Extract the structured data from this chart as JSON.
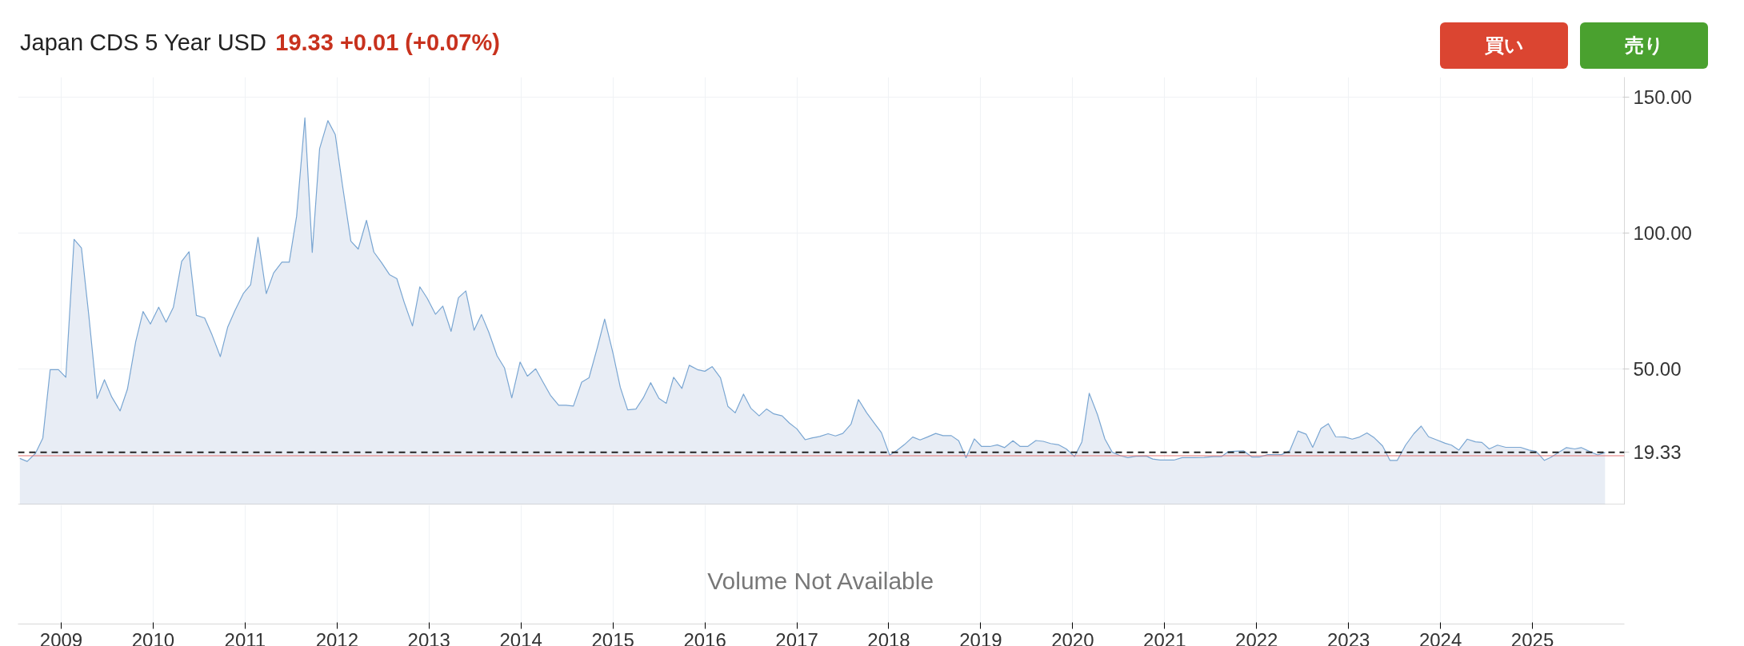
{
  "chart_data": {
    "type": "area",
    "title": "Japan CDS 5 Year USD",
    "subtitle": "19.33 +0.01 (+0.07%)",
    "annotations": [
      "Volume Not Available",
      "買い",
      "売り"
    ],
    "x": [
      2008.55,
      2008.63,
      2008.72,
      2008.8,
      2008.88,
      2008.97,
      2009.05,
      2009.14,
      2009.22,
      2009.3,
      2009.39,
      2009.47,
      2009.55,
      2009.64,
      2009.72,
      2009.81,
      2009.89,
      2009.97,
      2010.06,
      2010.14,
      2010.22,
      2010.31,
      2010.39,
      2010.47,
      2010.56,
      2010.64,
      2010.73,
      2010.81,
      2010.89,
      2010.98,
      2011.06,
      2011.14,
      2011.23,
      2011.31,
      2011.4,
      2011.48,
      2011.56,
      2011.65,
      2011.73,
      2011.81,
      2011.9,
      2011.98,
      2012.06,
      2012.15,
      2012.23,
      2012.32,
      2012.4,
      2012.48,
      2012.57,
      2012.65,
      2012.73,
      2012.82,
      2012.9,
      2012.98,
      2013.07,
      2013.15,
      2013.24,
      2013.32,
      2013.4,
      2013.49,
      2013.57,
      2013.65,
      2013.74,
      2013.82,
      2013.9,
      2013.99,
      2014.07,
      2014.16,
      2014.24,
      2014.32,
      2014.41,
      2014.49,
      2014.57,
      2014.66,
      2014.74,
      2014.83,
      2014.91,
      2015.0,
      2015.08,
      2015.16,
      2015.25,
      2015.33,
      2015.41,
      2015.5,
      2015.58,
      2015.66,
      2015.75,
      2015.83,
      2015.92,
      2016.0,
      2016.08,
      2016.17,
      2016.25,
      2016.33,
      2016.42,
      2016.5,
      2016.59,
      2016.67,
      2016.75,
      2016.84,
      2016.92,
      2017.0,
      2017.09,
      2017.17,
      2017.25,
      2017.34,
      2017.42,
      2017.5,
      2017.59,
      2017.67,
      2017.76,
      2017.84,
      2017.92,
      2018.01,
      2018.09,
      2018.17,
      2018.26,
      2018.34,
      2018.42,
      2018.51,
      2018.59,
      2018.68,
      2018.76,
      2018.84,
      2018.93,
      2019.01,
      2019.1,
      2019.18,
      2019.26,
      2019.35,
      2019.43,
      2019.51,
      2019.6,
      2019.68,
      2019.76,
      2019.85,
      2019.93,
      2020.02,
      2020.1,
      2020.18,
      2020.27,
      2020.35,
      2020.43,
      2020.52,
      2020.6,
      2020.69,
      2020.8,
      2020.87,
      2020.95,
      2021.1,
      2021.19,
      2021.32,
      2021.43,
      2021.53,
      2021.62,
      2021.69,
      2021.86,
      2021.95,
      2022.03,
      2022.12,
      2022.27,
      2022.36,
      2022.45,
      2022.54,
      2022.61,
      2022.7,
      2022.78,
      2022.86,
      2022.96,
      2023.04,
      2023.12,
      2023.2,
      2023.28,
      2023.37,
      2023.45,
      2023.53,
      2023.62,
      2023.71,
      2023.79,
      2023.87,
      2023.96,
      2024.05,
      2024.12,
      2024.2,
      2024.29,
      2024.38,
      2024.45,
      2024.53,
      2024.62,
      2024.71,
      2024.87,
      2024.96,
      2025.04,
      2025.13,
      2025.2,
      2025.29,
      2025.37,
      2025.46,
      2025.53,
      2025.62,
      2025.71,
      2025.79
    ],
    "series": [
      {
        "color": "#7aa6d2",
        "values": [
          17.1,
          16.0,
          19.0,
          24.6,
          49.8,
          49.8,
          47.0,
          97.8,
          94.6,
          69.8,
          39.2,
          46.1,
          39.7,
          34.6,
          42.6,
          60.1,
          71.2,
          66.6,
          72.8,
          67.3,
          72.8,
          89.7,
          93.2,
          69.8,
          68.8,
          62.6,
          54.6,
          65.4,
          71.6,
          77.8,
          81.1,
          98.5,
          77.8,
          85.4,
          89.4,
          89.4,
          106.3,
          142.5,
          93.0,
          131.2,
          141.5,
          136.4,
          117.4,
          97.1,
          94.2,
          104.8,
          93.1,
          89.4,
          84.8,
          83.3,
          74.6,
          65.9,
          80.3,
          76.1,
          70.2,
          73.2,
          63.9,
          76.3,
          78.8,
          64.3,
          70.1,
          63.6,
          54.9,
          50.5,
          39.4,
          52.6,
          47.4,
          50.1,
          45.2,
          40.4,
          36.7,
          36.7,
          36.4,
          45.2,
          46.8,
          57.9,
          68.4,
          56.0,
          43.3,
          35.0,
          35.3,
          39.4,
          45.0,
          39.2,
          37.4,
          47.0,
          42.9,
          51.4,
          49.8,
          49.2,
          50.9,
          46.8,
          36.3,
          33.9,
          40.8,
          35.6,
          32.8,
          35.3,
          33.5,
          32.8,
          30.1,
          28.0,
          24.0,
          24.7,
          25.2,
          26.2,
          25.4,
          26.3,
          29.8,
          38.8,
          33.9,
          30.2,
          26.6,
          18.3,
          20.1,
          22.2,
          25.0,
          23.9,
          25.0,
          26.3,
          25.5,
          25.5,
          23.6,
          17.4,
          24.3,
          21.5,
          21.5,
          22.1,
          21.1,
          23.6,
          21.5,
          21.5,
          23.7,
          23.4,
          22.6,
          22.1,
          20.6,
          17.8,
          23.2,
          41.1,
          33.2,
          24.3,
          19.4,
          18.1,
          17.4,
          17.9,
          18.0,
          16.9,
          16.5,
          16.5,
          17.4,
          17.4,
          17.5,
          17.8,
          17.8,
          19.6,
          19.9,
          17.6,
          17.6,
          18.5,
          18.5,
          19.9,
          27.2,
          26.0,
          21.2,
          28.1,
          29.9,
          25.1,
          25.0,
          24.2,
          25.0,
          26.5,
          24.7,
          21.7,
          16.4,
          16.4,
          22.0,
          26.2,
          29.0,
          25.1,
          23.9,
          22.7,
          22.0,
          20.2,
          24.2,
          23.2,
          23.0,
          20.6,
          22.0,
          21.2,
          21.2,
          20.2,
          19.7,
          16.4,
          17.5,
          19.4,
          21.1,
          20.6,
          21.1,
          19.7,
          18.4,
          19.33
        ]
      }
    ],
    "xlim": [
      2008.53,
      2026.0
    ],
    "xticks": [
      2009,
      2010,
      2011,
      2012,
      2013,
      2014,
      2015,
      2016,
      2017,
      2018,
      2019,
      2020,
      2021,
      2022,
      2023,
      2024,
      2025
    ],
    "ylim": [
      0,
      157.5
    ],
    "yticks": [
      {
        "value": 50,
        "label": "50.00"
      },
      {
        "value": 100,
        "label": "100.00"
      },
      {
        "value": 150,
        "label": "150.00"
      }
    ],
    "ref_lines": [
      {
        "axis": "y",
        "value": 19.33,
        "label": "19.33",
        "color": "#222222",
        "line_style": "dashed"
      },
      {
        "axis": "y",
        "value": 18.1,
        "label": null,
        "color": "#e57373",
        "line_style": "solid"
      }
    ],
    "grid": true
  }
}
